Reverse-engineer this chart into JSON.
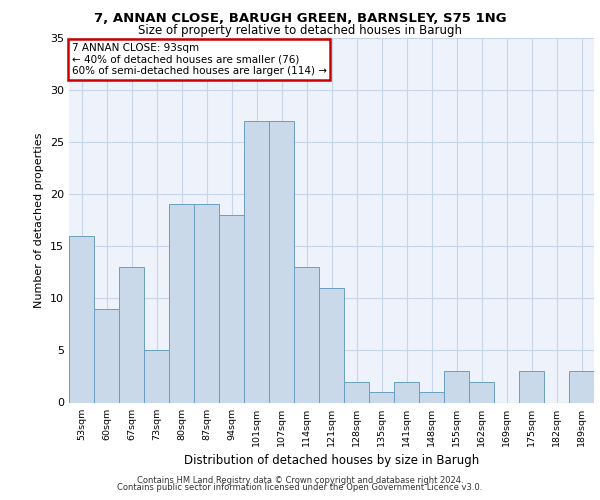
{
  "title1": "7, ANNAN CLOSE, BARUGH GREEN, BARNSLEY, S75 1NG",
  "title2": "Size of property relative to detached houses in Barugh",
  "xlabel": "Distribution of detached houses by size in Barugh",
  "ylabel": "Number of detached properties",
  "categories": [
    "53sqm",
    "60sqm",
    "67sqm",
    "73sqm",
    "80sqm",
    "87sqm",
    "94sqm",
    "101sqm",
    "107sqm",
    "114sqm",
    "121sqm",
    "128sqm",
    "135sqm",
    "141sqm",
    "148sqm",
    "155sqm",
    "162sqm",
    "169sqm",
    "175sqm",
    "182sqm",
    "189sqm"
  ],
  "values": [
    16,
    9,
    13,
    5,
    19,
    19,
    18,
    27,
    27,
    13,
    11,
    2,
    1,
    2,
    1,
    3,
    2,
    0,
    3,
    0,
    3
  ],
  "bar_color": "#c9d9ea",
  "bar_edge_color": "#6a9fc0",
  "annotation_text": "7 ANNAN CLOSE: 93sqm\n← 40% of detached houses are smaller (76)\n60% of semi-detached houses are larger (114) →",
  "annotation_box_color": "#ffffff",
  "annotation_box_edge_color": "#cc0000",
  "ylim": [
    0,
    35
  ],
  "yticks": [
    0,
    5,
    10,
    15,
    20,
    25,
    30,
    35
  ],
  "grid_color": "#c8d4e8",
  "background_color": "#eef2fa",
  "footer1": "Contains HM Land Registry data © Crown copyright and database right 2024.",
  "footer2": "Contains public sector information licensed under the Open Government Licence v3.0."
}
